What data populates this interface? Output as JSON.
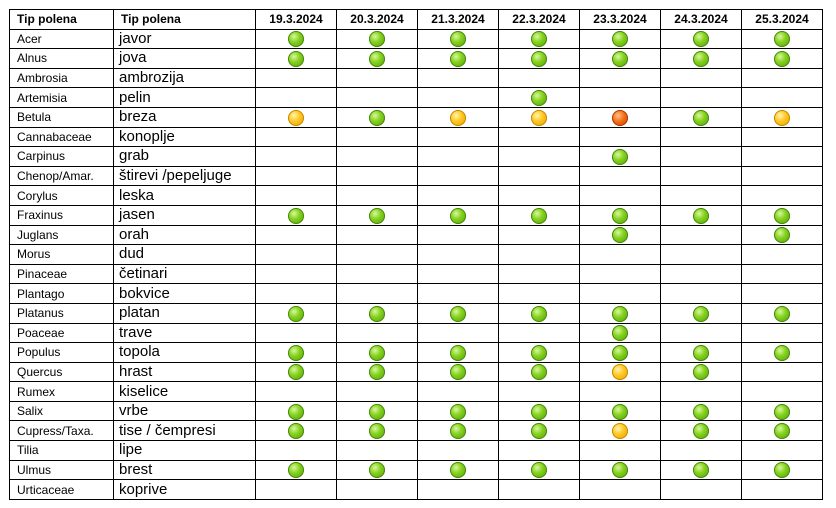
{
  "header": {
    "col_latin": "Tip polena",
    "col_local": "Tip polena",
    "dates": [
      "19.3.2024",
      "20.3.2024",
      "21.3.2024",
      "22.3.2024",
      "23.3.2024",
      "24.3.2024",
      "25.3.2024"
    ]
  },
  "level_colors": {
    "green": "#7cc41d",
    "yellow": "#ffc21a",
    "orange": "#f0651a"
  },
  "rows": [
    {
      "latin": "Acer",
      "local": "javor",
      "levels": [
        "green",
        "green",
        "green",
        "green",
        "green",
        "green",
        "green"
      ]
    },
    {
      "latin": "Alnus",
      "local": "jova",
      "levels": [
        "green",
        "green",
        "green",
        "green",
        "green",
        "green",
        "green"
      ]
    },
    {
      "latin": "Ambrosia",
      "local": "ambrozija",
      "levels": [
        "",
        "",
        "",
        "",
        "",
        "",
        ""
      ]
    },
    {
      "latin": "Artemisia",
      "local": "pelin",
      "levels": [
        "",
        "",
        "",
        "green",
        "",
        "",
        ""
      ]
    },
    {
      "latin": "Betula",
      "local": "breza",
      "levels": [
        "yellow",
        "green",
        "yellow",
        "yellow",
        "orange",
        "green",
        "yellow"
      ]
    },
    {
      "latin": "Cannabaceae",
      "local": "konoplje",
      "levels": [
        "",
        "",
        "",
        "",
        "",
        "",
        ""
      ]
    },
    {
      "latin": "Carpinus",
      "local": "grab",
      "levels": [
        "",
        "",
        "",
        "",
        "green",
        "",
        ""
      ]
    },
    {
      "latin": "Chenop/Amar.",
      "local": "štirevi /pepeljuge",
      "levels": [
        "",
        "",
        "",
        "",
        "",
        "",
        ""
      ]
    },
    {
      "latin": "Corylus",
      "local": "leska",
      "levels": [
        "",
        "",
        "",
        "",
        "",
        "",
        ""
      ]
    },
    {
      "latin": "Fraxinus",
      "local": "jasen",
      "levels": [
        "green",
        "green",
        "green",
        "green",
        "green",
        "green",
        "green"
      ]
    },
    {
      "latin": "Juglans",
      "local": "orah",
      "levels": [
        "",
        "",
        "",
        "",
        "green",
        "",
        "green"
      ]
    },
    {
      "latin": "Morus",
      "local": "dud",
      "levels": [
        "",
        "",
        "",
        "",
        "",
        "",
        ""
      ]
    },
    {
      "latin": "Pinaceae",
      "local": "četinari",
      "levels": [
        "",
        "",
        "",
        "",
        "",
        "",
        ""
      ]
    },
    {
      "latin": "Plantago",
      "local": "bokvice",
      "levels": [
        "",
        "",
        "",
        "",
        "",
        "",
        ""
      ]
    },
    {
      "latin": "Platanus",
      "local": "platan",
      "levels": [
        "green",
        "green",
        "green",
        "green",
        "green",
        "green",
        "green"
      ]
    },
    {
      "latin": "Poaceae",
      "local": "trave",
      "levels": [
        "",
        "",
        "",
        "",
        "green",
        "",
        ""
      ]
    },
    {
      "latin": "Populus",
      "local": "topola",
      "levels": [
        "green",
        "green",
        "green",
        "green",
        "green",
        "green",
        "green"
      ]
    },
    {
      "latin": "Quercus",
      "local": "hrast",
      "levels": [
        "green",
        "green",
        "green",
        "green",
        "yellow",
        "green",
        ""
      ]
    },
    {
      "latin": "Rumex",
      "local": "kiselice",
      "levels": [
        "",
        "",
        "",
        "",
        "",
        "",
        ""
      ]
    },
    {
      "latin": "Salix",
      "local": "vrbe",
      "levels": [
        "green",
        "green",
        "green",
        "green",
        "green",
        "green",
        "green"
      ]
    },
    {
      "latin": "Cupress/Taxa.",
      "local": "tise / čempresi",
      "levels": [
        "green",
        "green",
        "green",
        "green",
        "yellow",
        "green",
        "green"
      ]
    },
    {
      "latin": "Tilia",
      "local": "lipe",
      "levels": [
        "",
        "",
        "",
        "",
        "",
        "",
        ""
      ]
    },
    {
      "latin": "Ulmus",
      "local": "brest",
      "levels": [
        "green",
        "green",
        "green",
        "green",
        "green",
        "green",
        "green"
      ]
    },
    {
      "latin": "Urticaceae",
      "local": "koprive",
      "levels": [
        "",
        "",
        "",
        "",
        "",
        "",
        ""
      ]
    }
  ]
}
